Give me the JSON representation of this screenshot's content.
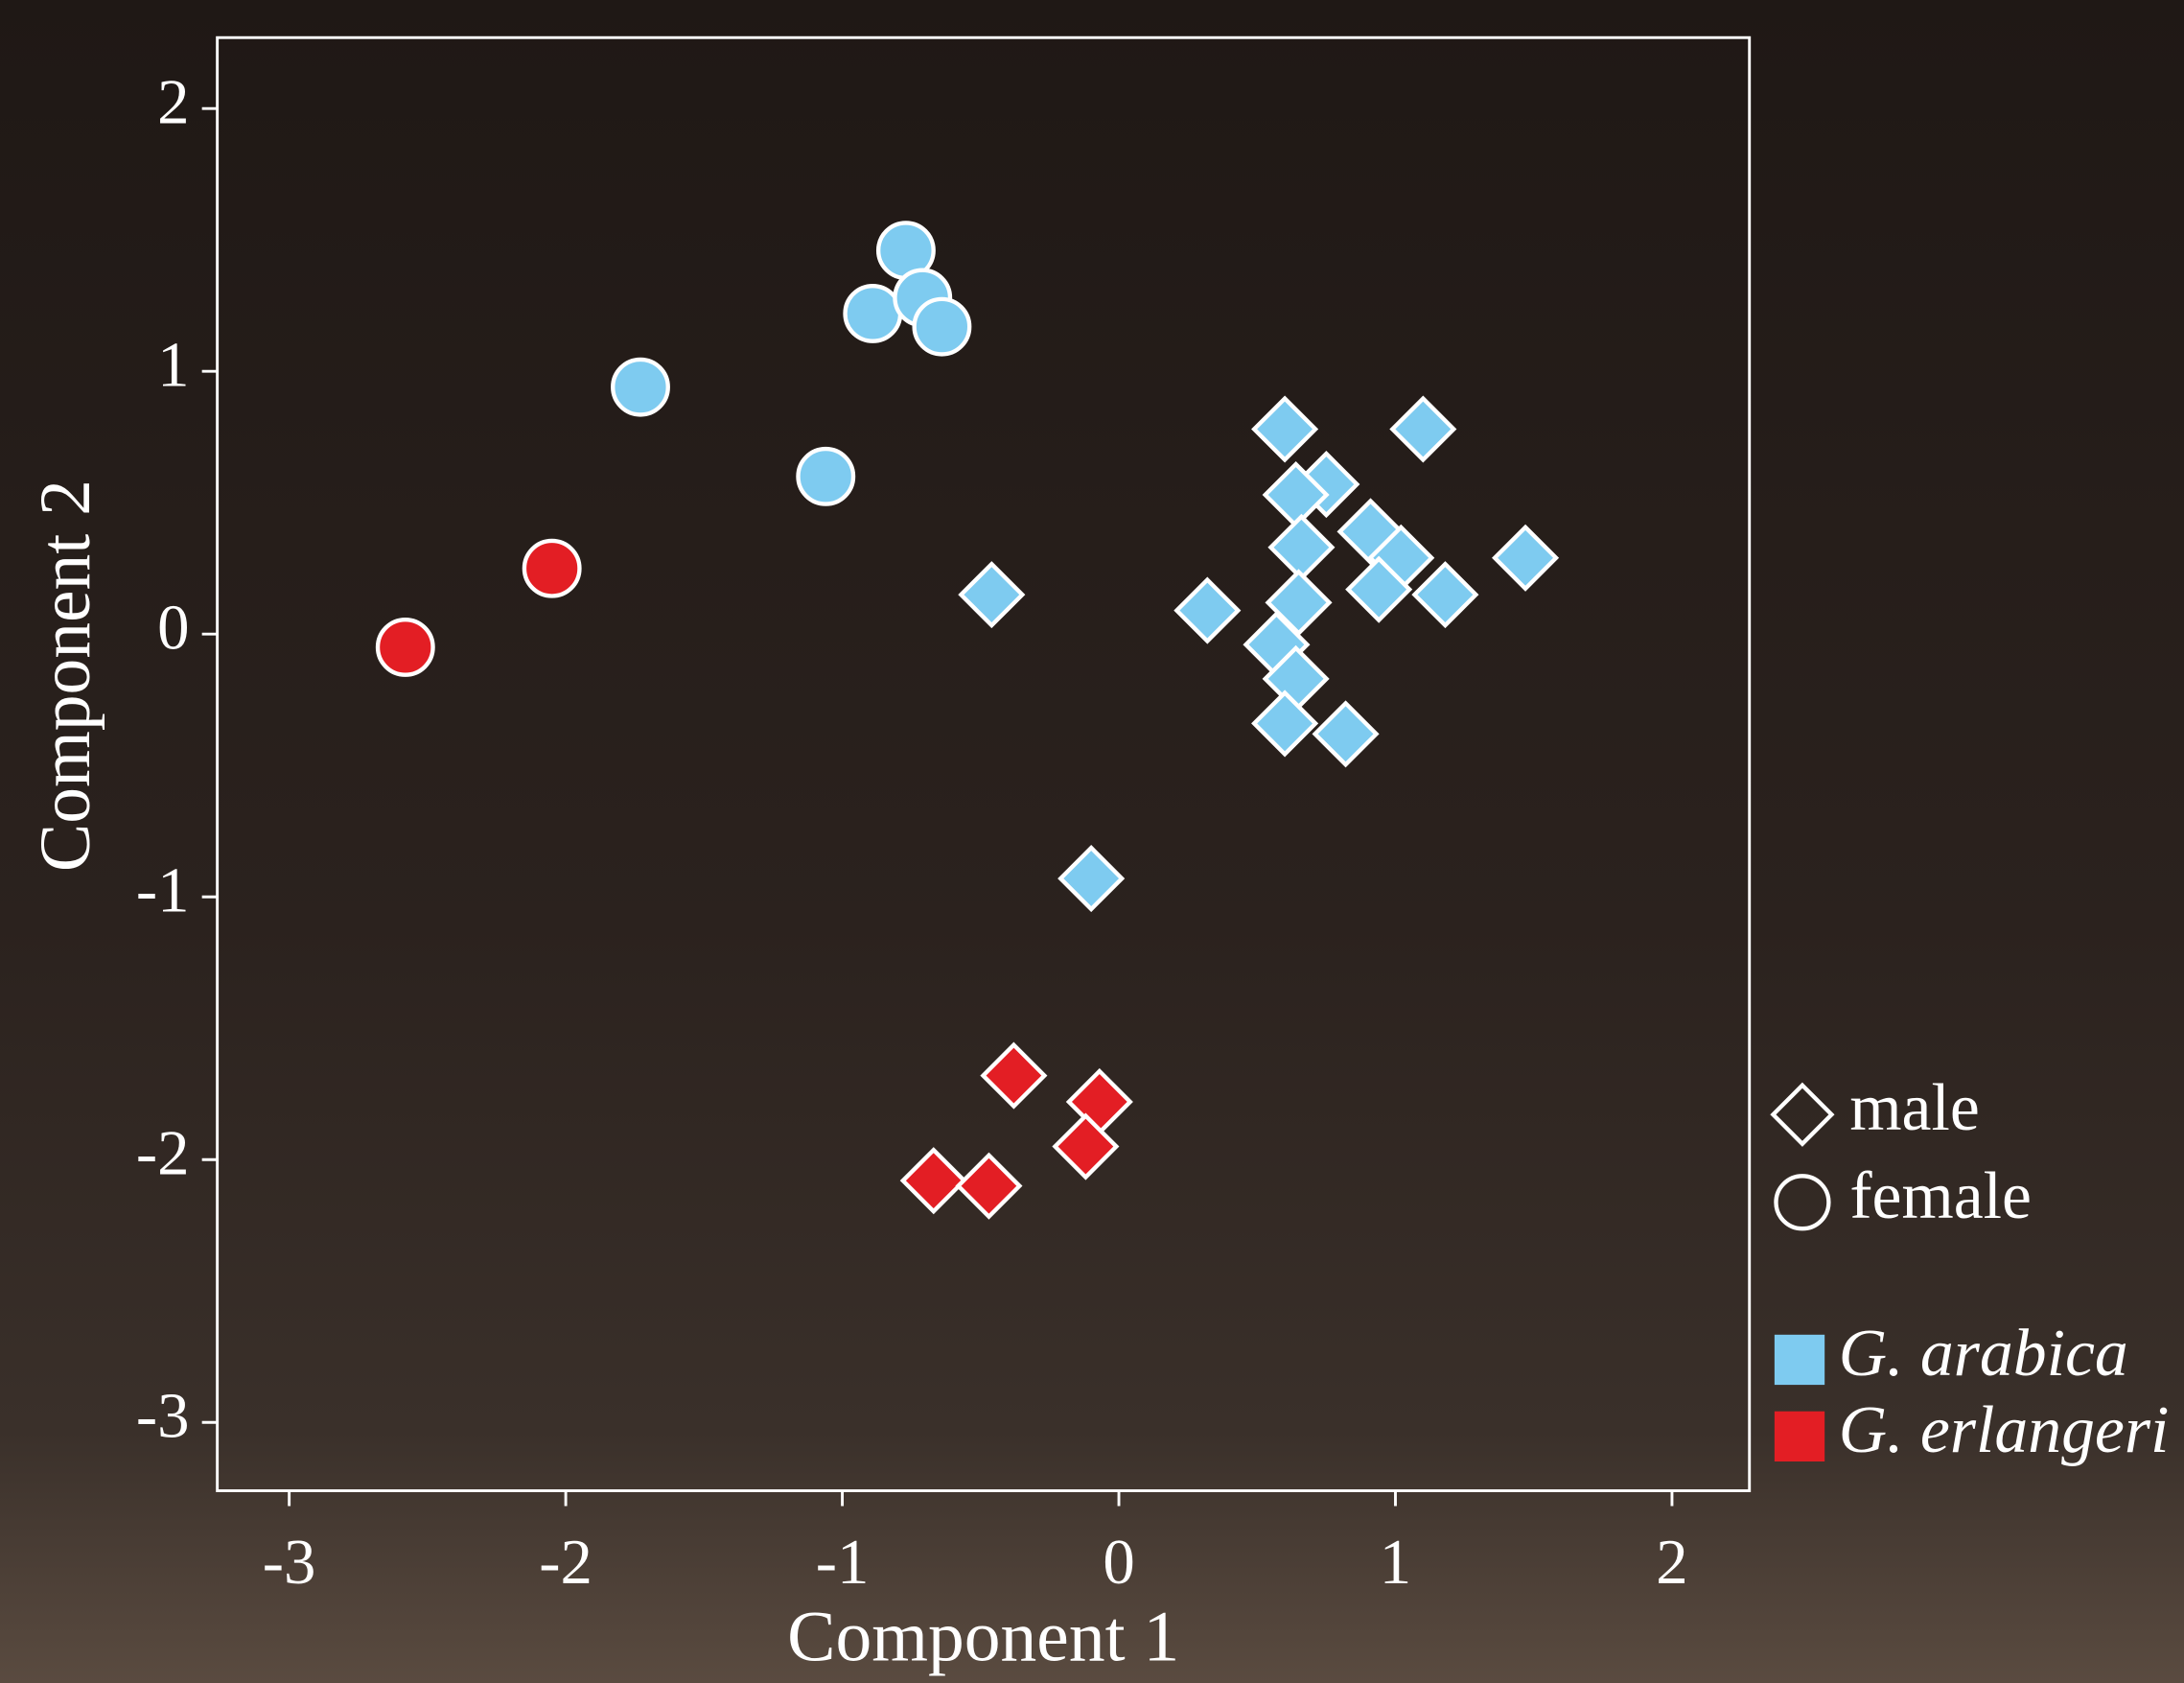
{
  "chart_data": {
    "type": "scatter",
    "xlabel": "Component 1",
    "ylabel": "Component 2",
    "xlim": [
      -3.26,
      2.28
    ],
    "ylim": [
      -3.26,
      2.27
    ],
    "xticks": [
      -3,
      -2,
      -1,
      0,
      1,
      2
    ],
    "yticks": [
      -3,
      -2,
      -1,
      0,
      1,
      2
    ],
    "shape_legend": [
      {
        "label": "male",
        "marker": "diamond"
      },
      {
        "label": "female",
        "marker": "circle"
      }
    ],
    "series": [
      {
        "name": "G. arabica",
        "color": "#7ecbf0",
        "x": [
          -0.77,
          -0.89,
          -0.71,
          -0.64,
          -1.73,
          -1.06,
          0.6,
          1.1,
          0.75,
          0.64,
          0.91,
          1.02,
          0.66,
          1.47,
          -0.46,
          0.32,
          0.94,
          1.18,
          0.65,
          0.57,
          0.64,
          0.6,
          0.82,
          -0.1
        ],
        "values": [
          1.46,
          1.22,
          1.28,
          1.17,
          0.94,
          0.6,
          0.78,
          0.78,
          0.57,
          0.53,
          0.39,
          0.29,
          0.33,
          0.29,
          0.15,
          0.09,
          0.17,
          0.15,
          0.12,
          -0.04,
          -0.17,
          -0.34,
          -0.38,
          -0.93
        ],
        "markers": [
          "circle",
          "circle",
          "circle",
          "circle",
          "circle",
          "circle",
          "diamond",
          "diamond",
          "diamond",
          "diamond",
          "diamond",
          "diamond",
          "diamond",
          "diamond",
          "diamond",
          "diamond",
          "diamond",
          "diamond",
          "diamond",
          "diamond",
          "diamond",
          "diamond",
          "diamond",
          "diamond"
        ]
      },
      {
        "name": "G. erlangeri",
        "color": "#e31e24",
        "x": [
          -2.05,
          -2.58,
          -0.38,
          -0.07,
          -0.12,
          -0.67,
          -0.47
        ],
        "values": [
          0.25,
          -0.05,
          -1.68,
          -1.78,
          -1.95,
          -2.08,
          -2.1
        ],
        "markers": [
          "circle",
          "circle",
          "diamond",
          "diamond",
          "diamond",
          "diamond",
          "diamond"
        ]
      }
    ]
  }
}
